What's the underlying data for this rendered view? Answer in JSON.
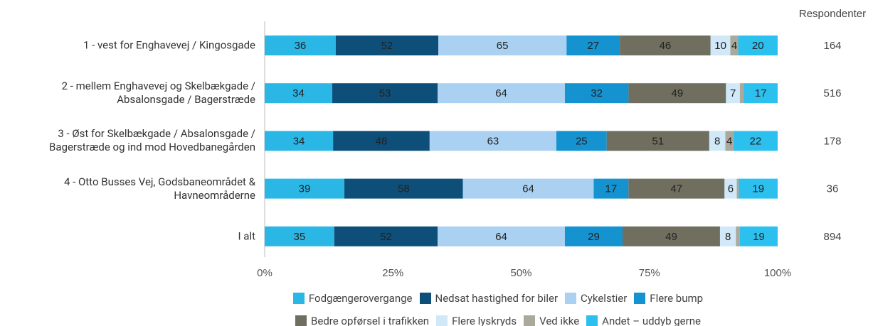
{
  "chart_data": {
    "type": "stacked_bar_100",
    "orientation": "horizontal",
    "categories": [
      "1 - vest for Enghavevej / Kingosgade",
      "2 - mellem Enghavevej og Skelbækgade / Absalonsgade / Bagerstræde",
      "3 - Øst for Skelbækgade / Absalonsgade / Bagerstræde og ind mod Hovedbanegården",
      "4 - Otto Busses Vej, Godsbaneområdet & Havneområderne",
      "I alt"
    ],
    "series": [
      {
        "name": "Fodgængerovergange",
        "color": "#2ab7e6",
        "values": [
          36,
          34,
          34,
          39,
          35
        ]
      },
      {
        "name": "Nedsat hastighed for biler",
        "color": "#0e4f7a",
        "values": [
          52,
          53,
          48,
          58,
          52
        ]
      },
      {
        "name": "Cykelstier",
        "color": "#aad1f1",
        "values": [
          65,
          64,
          63,
          64,
          64
        ]
      },
      {
        "name": "Flere bump",
        "color": "#1592d0",
        "values": [
          27,
          32,
          25,
          17,
          29
        ]
      },
      {
        "name": "Bedre opførsel i trafikken",
        "color": "#6f6e5f",
        "values": [
          46,
          49,
          51,
          47,
          49
        ]
      },
      {
        "name": "Flere lyskryds",
        "color": "#d0e8f8",
        "values": [
          10,
          7,
          8,
          6,
          8
        ]
      },
      {
        "name": "Ved ikke",
        "color": "#aaa99c",
        "values": [
          4,
          2,
          4,
          1,
          2
        ]
      },
      {
        "name": "Andet – uddyb gerne",
        "color": "#2cc0ef",
        "values": [
          20,
          17,
          22,
          19,
          19
        ]
      }
    ],
    "xlim": [
      0,
      100
    ],
    "xticks": [
      {
        "value": 0,
        "label": "0%"
      },
      {
        "value": 25,
        "label": "25%"
      },
      {
        "value": 50,
        "label": "50%"
      },
      {
        "value": 75,
        "label": "75%"
      },
      {
        "value": 100,
        "label": "100%"
      }
    ],
    "respondents_label": "Respondenter",
    "respondents": [
      164,
      516,
      178,
      36,
      894
    ]
  }
}
